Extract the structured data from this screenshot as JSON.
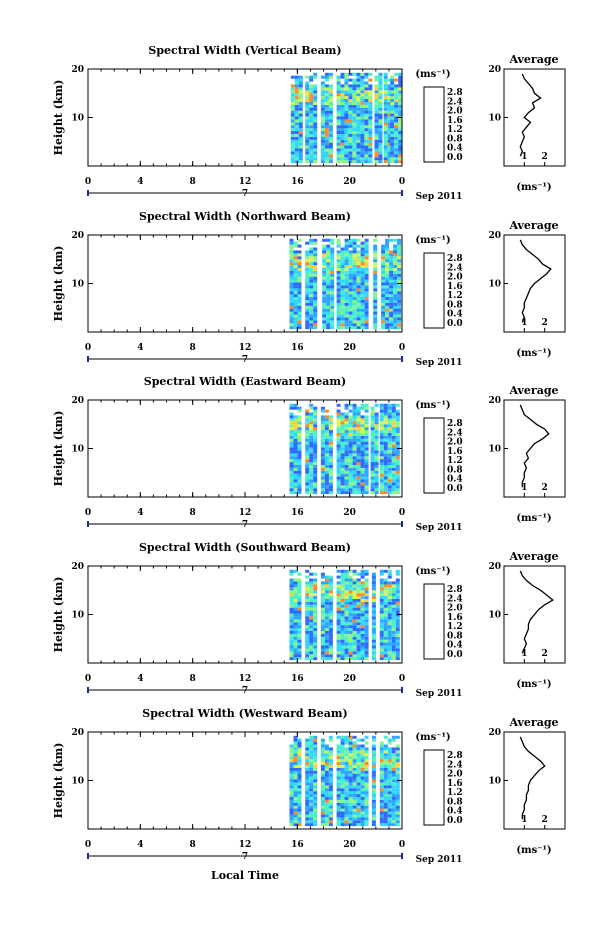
{
  "figure": {
    "xlabel": "Local Time",
    "date_label": "Sep 2011",
    "day_marker": "7",
    "ylabel": "Height (km)",
    "avg_title": "Average",
    "unit": "(ms⁻¹)"
  },
  "colorbar": {
    "labels": [
      "0.0",
      "0.4",
      "0.8",
      "1.2",
      "1.6",
      "2.0",
      "2.4",
      "2.8"
    ],
    "colors": [
      "#3b3b8f",
      "#2b2bff",
      "#2f6bff",
      "#2fa3ff",
      "#33d5ff",
      "#4cf0c8",
      "#8cf58a",
      "#d5f55a",
      "#ffd23a",
      "#ff8a2a",
      "#ff3a1a"
    ]
  },
  "chart_data": [
    {
      "type": "heatmap",
      "title": "Spectral Width (Vertical Beam)",
      "xticks": [
        "0",
        "4",
        "8",
        "12",
        "16",
        "20",
        "0"
      ],
      "xlim": [
        0,
        24
      ],
      "ylim": [
        0,
        20
      ],
      "yticks": [
        "20",
        "10"
      ],
      "data_columns": [
        [
          15.5,
          16.2
        ],
        [
          16.6,
          17.4
        ],
        [
          17.8,
          18.6
        ],
        [
          19.0,
          19.6
        ],
        [
          19.6,
          21.6
        ],
        [
          21.9,
          22.4
        ],
        [
          22.6,
          23.0
        ],
        [
          23.1,
          23.9
        ]
      ],
      "value_range": [
        0.0,
        2.8
      ],
      "average_profile": {
        "xlim": [
          0,
          3
        ],
        "xticks": [
          "1",
          "2"
        ],
        "yticks": [
          "20",
          "10"
        ],
        "height_km": [
          2,
          3,
          4,
          5,
          6,
          7,
          8,
          9,
          10,
          11,
          12,
          13,
          14,
          15,
          16,
          17,
          18,
          19
        ],
        "width_ms": [
          0.8,
          0.9,
          0.8,
          0.9,
          1.0,
          0.9,
          1.1,
          1.3,
          1.0,
          1.2,
          1.5,
          1.4,
          1.8,
          1.5,
          1.4,
          1.2,
          1.0,
          0.9
        ]
      }
    },
    {
      "type": "heatmap",
      "title": "Spectral Width (Northward Beam)",
      "xticks": [
        "0",
        "4",
        "8",
        "12",
        "16",
        "20",
        "0"
      ],
      "xlim": [
        0,
        24
      ],
      "ylim": [
        0,
        20
      ],
      "yticks": [
        "20",
        "10"
      ],
      "data_columns": [
        [
          15.4,
          16.2
        ],
        [
          16.6,
          17.5
        ],
        [
          17.9,
          18.6
        ],
        [
          19.0,
          21.4
        ],
        [
          21.8,
          22.1
        ],
        [
          22.4,
          23.8
        ]
      ],
      "value_range": [
        0.0,
        2.8
      ],
      "average_profile": {
        "xlim": [
          0,
          3
        ],
        "xticks": [
          "1",
          "2"
        ],
        "yticks": [
          "20",
          "10"
        ],
        "height_km": [
          2,
          3,
          4,
          5,
          6,
          7,
          8,
          9,
          10,
          11,
          12,
          13,
          14,
          15,
          16,
          17,
          18,
          19
        ],
        "width_ms": [
          0.9,
          1.0,
          0.9,
          1.0,
          1.0,
          1.1,
          1.2,
          1.3,
          1.5,
          1.8,
          2.1,
          2.3,
          1.9,
          1.7,
          1.4,
          1.1,
          0.9,
          0.8
        ]
      }
    },
    {
      "type": "heatmap",
      "title": "Spectral Width (Eastward Beam)",
      "xticks": [
        "0",
        "4",
        "8",
        "12",
        "16",
        "20",
        "0"
      ],
      "xlim": [
        0,
        24
      ],
      "ylim": [
        0,
        20
      ],
      "yticks": [
        "20",
        "10"
      ],
      "data_columns": [
        [
          15.4,
          16.2
        ],
        [
          16.6,
          17.5
        ],
        [
          17.8,
          18.6
        ],
        [
          19.0,
          21.3
        ],
        [
          21.6,
          22.0
        ],
        [
          22.3,
          23.8
        ]
      ],
      "value_range": [
        0.0,
        2.8
      ],
      "average_profile": {
        "xlim": [
          0,
          3
        ],
        "xticks": [
          "1",
          "2"
        ],
        "yticks": [
          "20",
          "10"
        ],
        "height_km": [
          2,
          3,
          4,
          5,
          6,
          7,
          8,
          9,
          10,
          11,
          12,
          13,
          14,
          15,
          16,
          17,
          18,
          19
        ],
        "width_ms": [
          0.9,
          0.9,
          1.0,
          1.0,
          1.1,
          1.0,
          1.2,
          1.1,
          1.3,
          1.5,
          1.9,
          2.2,
          2.0,
          1.6,
          1.3,
          1.0,
          0.9,
          0.8
        ]
      }
    },
    {
      "type": "heatmap",
      "title": "Spectral Width (Southward Beam)",
      "xticks": [
        "0",
        "4",
        "8",
        "12",
        "16",
        "20",
        "0"
      ],
      "xlim": [
        0,
        24
      ],
      "ylim": [
        0,
        20
      ],
      "yticks": [
        "20",
        "10"
      ],
      "data_columns": [
        [
          15.4,
          16.2
        ],
        [
          16.6,
          17.5
        ],
        [
          17.8,
          18.6
        ],
        [
          19.0,
          21.4
        ],
        [
          21.7,
          22.0
        ],
        [
          22.3,
          23.8
        ]
      ],
      "value_range": [
        0.0,
        2.8
      ],
      "average_profile": {
        "xlim": [
          0,
          3
        ],
        "xticks": [
          "1",
          "2"
        ],
        "yticks": [
          "20",
          "10"
        ],
        "height_km": [
          2,
          3,
          4,
          5,
          6,
          7,
          8,
          9,
          10,
          11,
          12,
          13,
          14,
          15,
          16,
          17,
          18,
          19
        ],
        "width_ms": [
          0.9,
          1.0,
          1.1,
          1.0,
          1.1,
          1.2,
          1.2,
          1.3,
          1.5,
          1.7,
          2.0,
          2.4,
          2.1,
          1.8,
          1.4,
          1.1,
          0.9,
          0.8
        ]
      }
    },
    {
      "type": "heatmap",
      "title": "Spectral Width (Westward Beam)",
      "xticks": [
        "0",
        "4",
        "8",
        "12",
        "16",
        "20",
        "0"
      ],
      "xlim": [
        0,
        24
      ],
      "ylim": [
        0,
        20
      ],
      "yticks": [
        "20",
        "10"
      ],
      "data_columns": [
        [
          15.4,
          16.2
        ],
        [
          16.6,
          17.5
        ],
        [
          17.8,
          18.6
        ],
        [
          19.0,
          21.4
        ],
        [
          21.7,
          22.0
        ],
        [
          22.3,
          23.8
        ]
      ],
      "value_range": [
        0.0,
        2.8
      ],
      "average_profile": {
        "xlim": [
          0,
          3
        ],
        "xticks": [
          "1",
          "2"
        ],
        "yticks": [
          "20",
          "10"
        ],
        "height_km": [
          2,
          3,
          4,
          5,
          6,
          7,
          8,
          9,
          10,
          11,
          12,
          13,
          14,
          15,
          16,
          17,
          18,
          19
        ],
        "width_ms": [
          0.9,
          0.9,
          1.0,
          1.0,
          1.1,
          1.1,
          1.2,
          1.2,
          1.3,
          1.5,
          1.7,
          2.0,
          1.8,
          1.5,
          1.2,
          1.0,
          0.9,
          0.8
        ]
      }
    }
  ]
}
